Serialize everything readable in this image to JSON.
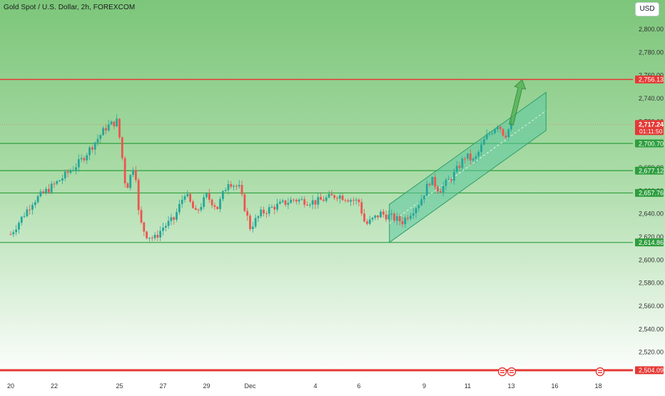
{
  "header": {
    "title": "Gold Spot / U.S. Dollar, 2h, FOREXCOM",
    "currency": "USD"
  },
  "colors": {
    "background_top": "#7cc67a",
    "background_bottom": "#ffffff",
    "up_candle": "#26a69a",
    "down_candle": "#ef5350",
    "support_line": "#2e9e3e",
    "resistance_line": "#e53935",
    "channel_fill": "#5cc9a1",
    "channel_line": "#2f9e6a",
    "arrow": "#4caf50",
    "axis_text": "#333333"
  },
  "chart_data": {
    "type": "candlestick",
    "interval": "2h",
    "y_axis": {
      "ylim": [
        2496,
        2825
      ],
      "ticks": [
        2520,
        2540,
        2560,
        2580,
        2600,
        2620,
        2640,
        2660,
        2680,
        2700,
        2720,
        2740,
        2760,
        2780,
        2800
      ],
      "tick_labels": [
        "2,520.00",
        "2,540.00",
        "2,560.00",
        "2,580.00",
        "2,600.00",
        "2,620.00",
        "2,640.00",
        "2,660.00",
        "2,680.00",
        "2,700.00",
        "2,720.00",
        "2,740.00",
        "2,760.00",
        "2,780.00",
        "2,800.00"
      ]
    },
    "x_axis": {
      "ticks": [
        {
          "label": "20",
          "day": 0
        },
        {
          "label": "22",
          "day": 2
        },
        {
          "label": "25",
          "day": 5
        },
        {
          "label": "27",
          "day": 7
        },
        {
          "label": "29",
          "day": 9
        },
        {
          "label": "Dec",
          "day": 11
        },
        {
          "label": "4",
          "day": 14
        },
        {
          "label": "6",
          "day": 16
        },
        {
          "label": "9",
          "day": 19
        },
        {
          "label": "11",
          "day": 21
        },
        {
          "label": "13",
          "day": 23
        },
        {
          "label": "16",
          "day": 25
        },
        {
          "label": "18",
          "day": 27
        }
      ]
    },
    "price_path": [
      {
        "t": 0,
        "p": 2622
      },
      {
        "t": 1,
        "p": 2650
      },
      {
        "t": 2.2,
        "p": 2668
      },
      {
        "t": 3.2,
        "p": 2685
      },
      {
        "t": 4.4,
        "p": 2715
      },
      {
        "t": 4.9,
        "p": 2720
      },
      {
        "t": 5.1,
        "p": 2692
      },
      {
        "t": 5.3,
        "p": 2660
      },
      {
        "t": 5.7,
        "p": 2685
      },
      {
        "t": 5.9,
        "p": 2635
      },
      {
        "t": 6.2,
        "p": 2622
      },
      {
        "t": 6.6,
        "p": 2618
      },
      {
        "t": 7,
        "p": 2628
      },
      {
        "t": 7.5,
        "p": 2635
      },
      {
        "t": 8,
        "p": 2658
      },
      {
        "t": 8.5,
        "p": 2640
      },
      {
        "t": 9,
        "p": 2655
      },
      {
        "t": 9.5,
        "p": 2645
      },
      {
        "t": 10,
        "p": 2668
      },
      {
        "t": 10.5,
        "p": 2662
      },
      {
        "t": 11,
        "p": 2628
      },
      {
        "t": 11.5,
        "p": 2640
      },
      {
        "t": 12,
        "p": 2645
      },
      {
        "t": 13,
        "p": 2652
      },
      {
        "t": 14,
        "p": 2650
      },
      {
        "t": 15,
        "p": 2656
      },
      {
        "t": 16,
        "p": 2650
      },
      {
        "t": 16.3,
        "p": 2630
      },
      {
        "t": 17,
        "p": 2640
      },
      {
        "t": 18,
        "p": 2633
      },
      {
        "t": 18.8,
        "p": 2650
      },
      {
        "t": 19.3,
        "p": 2670
      },
      {
        "t": 19.7,
        "p": 2660
      },
      {
        "t": 20.3,
        "p": 2672
      },
      {
        "t": 20.9,
        "p": 2690
      },
      {
        "t": 21.3,
        "p": 2685
      },
      {
        "t": 21.8,
        "p": 2705
      },
      {
        "t": 22.4,
        "p": 2718
      },
      {
        "t": 22.7,
        "p": 2707
      },
      {
        "t": 23,
        "p": 2717
      }
    ],
    "horizontal_levels": [
      {
        "price": 2756.13,
        "label": "2,756.13",
        "kind": "resistance"
      },
      {
        "price": 2700.7,
        "label": "2,700.70",
        "kind": "support"
      },
      {
        "price": 2677.12,
        "label": "2,677.12",
        "kind": "support"
      },
      {
        "price": 2657.76,
        "label": "2,657.76",
        "kind": "support"
      },
      {
        "price": 2614.86,
        "label": "2,614.86",
        "kind": "support"
      },
      {
        "price": 2504.09,
        "label": "2,504.09",
        "kind": "resistance"
      }
    ],
    "current_price": {
      "price": 2717.24,
      "label": "2,717.24",
      "countdown": "01:11:50"
    },
    "channel": {
      "lower_start": {
        "day": 17.4,
        "price": 2614.86
      },
      "lower_end": {
        "day": 24.6,
        "price": 2712
      },
      "width": 33,
      "midline_end_price": 2729
    },
    "forecast_arrow": {
      "from": {
        "day": 23.0,
        "price": 2717
      },
      "to": {
        "day": 23.5,
        "price": 2756
      }
    }
  }
}
